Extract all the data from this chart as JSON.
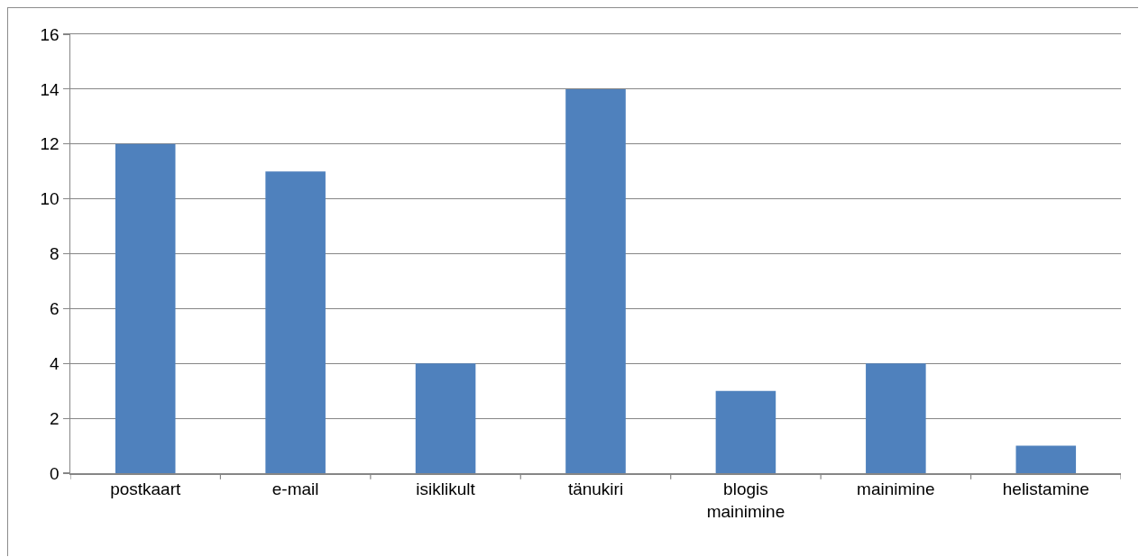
{
  "chart_data": {
    "type": "bar",
    "categories": [
      "postkaart",
      "e-mail",
      "isiklikult",
      "tänukiri",
      "blogis mainimine",
      "mainimine",
      "helistamine"
    ],
    "values": [
      12,
      11,
      4,
      14,
      3,
      4,
      1
    ],
    "color": "#4f81bd",
    "ylim": [
      0,
      16
    ],
    "yticks": [
      0,
      2,
      4,
      6,
      8,
      10,
      12,
      14,
      16
    ],
    "grid": "y",
    "legend": false
  }
}
